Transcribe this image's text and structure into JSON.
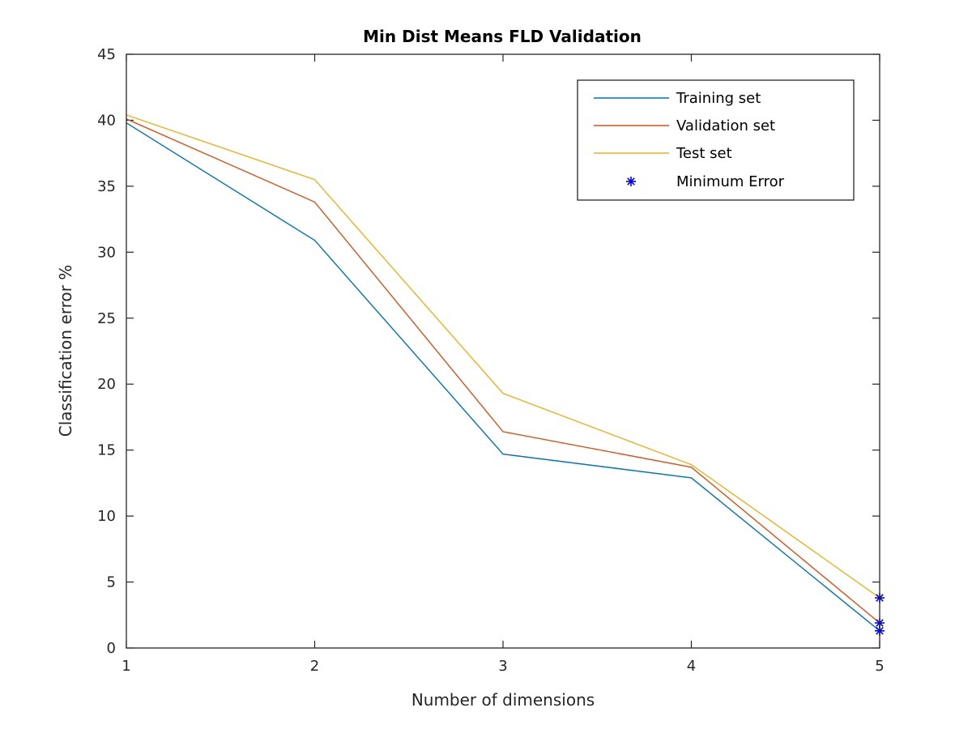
{
  "chart_data": {
    "type": "line",
    "title": "Min Dist Means FLD Validation",
    "xlabel": "Number of dimensions",
    "ylabel": "Classification error %",
    "xlim": [
      1,
      5
    ],
    "ylim": [
      0,
      45
    ],
    "xticks": [
      1,
      2,
      3,
      4,
      5
    ],
    "yticks": [
      0,
      5,
      10,
      15,
      20,
      25,
      30,
      35,
      40,
      45
    ],
    "grid": false,
    "legend_position": "top-right",
    "x": [
      1,
      2,
      3,
      4,
      5
    ],
    "series": [
      {
        "name": "Training set",
        "color": "#0072BD",
        "values": [
          39.8,
          30.9,
          14.7,
          12.9,
          1.3
        ]
      },
      {
        "name": "Validation set",
        "color": "#D95319",
        "values": [
          40.1,
          33.8,
          16.4,
          13.7,
          1.9
        ]
      },
      {
        "name": "Test set",
        "color": "#EDB120",
        "values": [
          40.4,
          35.5,
          19.3,
          13.9,
          3.8
        ]
      }
    ],
    "markers": {
      "name": "Minimum Error",
      "color": "#0000FF",
      "symbol": "asterisk",
      "points": [
        {
          "x": 5,
          "y": 1.3
        },
        {
          "x": 5,
          "y": 1.9
        },
        {
          "x": 5,
          "y": 3.8
        }
      ]
    }
  }
}
